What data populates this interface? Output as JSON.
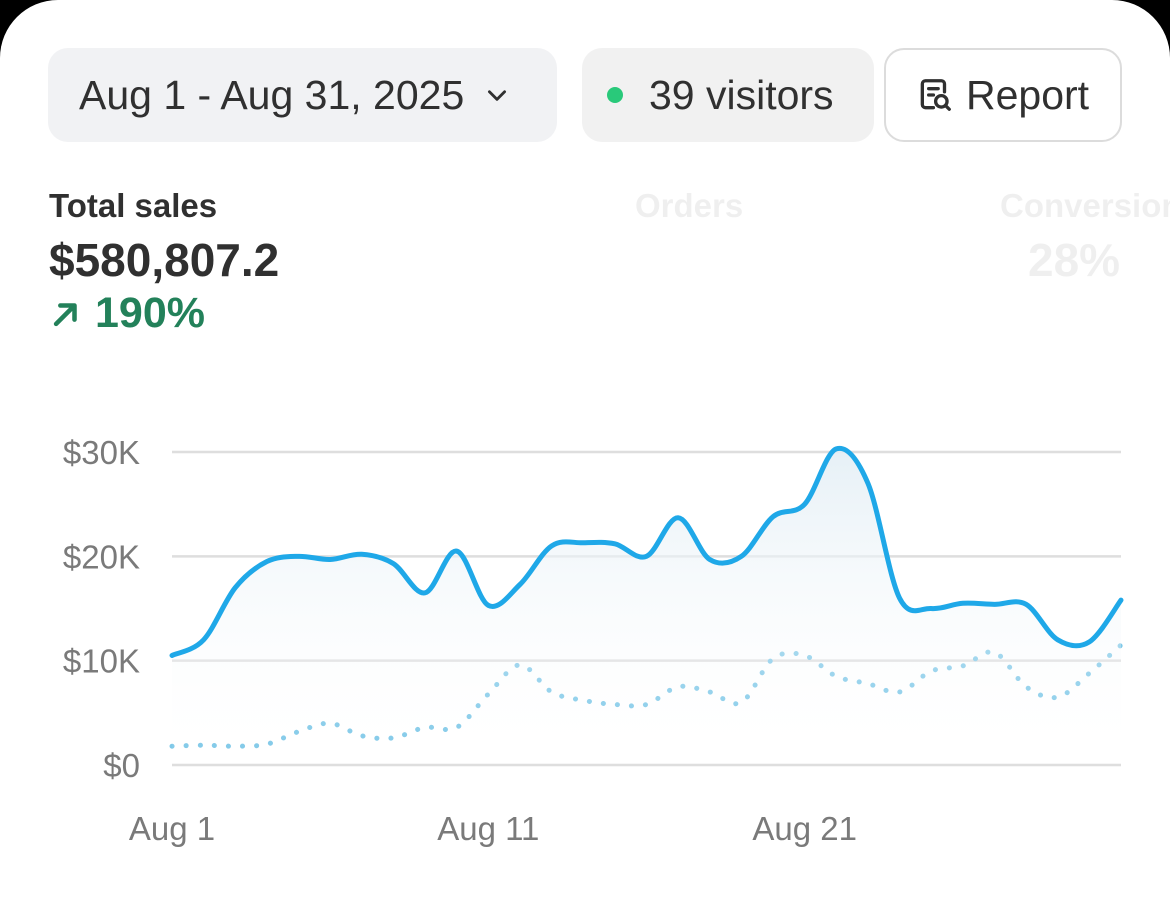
{
  "toolbar": {
    "date_range": "Aug 1 - Aug 31, 2025",
    "visitors": "39 visitors",
    "visitors_dot_color": "#29c97a",
    "report_label": "Report",
    "icons": [
      "chevron-down-icon",
      "report-search-icon"
    ]
  },
  "metrics": [
    {
      "label": "Total sales",
      "value": "$580,807.2",
      "change": "190%",
      "trend": "up",
      "change_color": "#23815a"
    },
    {
      "label": "Orders"
    },
    {
      "label": "Conversion",
      "value": "28%"
    }
  ],
  "chart_data": {
    "type": "line",
    "x": [
      "Aug 1",
      "Aug 2",
      "Aug 3",
      "Aug 4",
      "Aug 5",
      "Aug 6",
      "Aug 7",
      "Aug 8",
      "Aug 9",
      "Aug 10",
      "Aug 11",
      "Aug 12",
      "Aug 13",
      "Aug 14",
      "Aug 15",
      "Aug 16",
      "Aug 17",
      "Aug 18",
      "Aug 19",
      "Aug 20",
      "Aug 21",
      "Aug 22",
      "Aug 23",
      "Aug 24",
      "Aug 25",
      "Aug 26",
      "Aug 27",
      "Aug 28",
      "Aug 29",
      "Aug 30",
      "Aug 31"
    ],
    "x_tick_labels": [
      "Aug 1",
      "Aug 11",
      "Aug 21"
    ],
    "y_tick_labels": [
      "$30K",
      "$20K",
      "$10K",
      "$0"
    ],
    "ylim": [
      0,
      30000
    ],
    "grid": true,
    "series": [
      {
        "style": "solid",
        "color": "#1fa8e8",
        "fill": true,
        "values": [
          10500,
          12000,
          17000,
          19500,
          20000,
          19700,
          20200,
          19300,
          16500,
          20500,
          15300,
          17300,
          21000,
          21300,
          21200,
          20000,
          23700,
          19700,
          20000,
          23800,
          25000,
          30300,
          27000,
          16000,
          15000,
          15500,
          15400,
          15400,
          12000,
          11800,
          15800
        ]
      },
      {
        "style": "dotted",
        "color": "#7ec8e8",
        "fill": false,
        "values": [
          1800,
          1900,
          1800,
          2000,
          3200,
          4000,
          2800,
          2600,
          3600,
          3600,
          6800,
          9600,
          7000,
          6200,
          5800,
          5800,
          7500,
          7000,
          6000,
          10200,
          10500,
          8500,
          7800,
          7000,
          9000,
          9500,
          10800,
          7500,
          6500,
          8800,
          11500
        ]
      }
    ]
  }
}
